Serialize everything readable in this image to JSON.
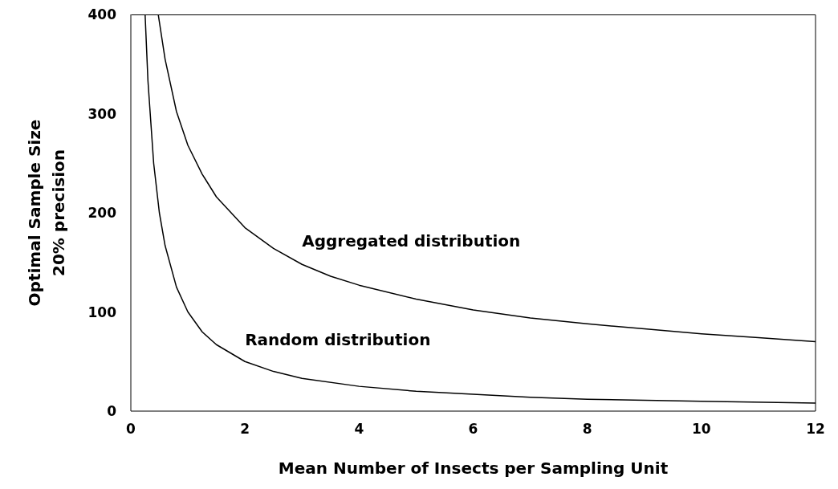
{
  "chart_data": {
    "type": "line",
    "xlabel": "Mean Number of Insects per Sampling Unit",
    "ylabel": "Optimal Sample Size\n20% precision",
    "xlim": [
      0,
      12
    ],
    "xticks": [
      0,
      2,
      4,
      6,
      8,
      10,
      12
    ],
    "ylim": [
      0,
      400
    ],
    "yticks": [
      0,
      100,
      200,
      300,
      400
    ],
    "grid": false,
    "legend": false,
    "marker": "none",
    "line_style": "solid",
    "series": [
      {
        "name": "Aggregated distribution",
        "color": "#000000",
        "x": [
          0.48,
          0.6,
          0.8,
          1,
          1.25,
          1.5,
          2,
          2.5,
          3,
          3.5,
          4,
          5,
          6,
          7,
          8,
          9,
          10,
          11,
          12
        ],
        "values": [
          400,
          355,
          302,
          268,
          239,
          216,
          185,
          164,
          148,
          136,
          127,
          113,
          102,
          94,
          88,
          83,
          78,
          74,
          70
        ]
      },
      {
        "name": "Random distribution",
        "color": "#000000",
        "x": [
          0.25,
          0.3,
          0.4,
          0.5,
          0.6,
          0.8,
          1,
          1.25,
          1.5,
          2,
          2.5,
          3,
          4,
          5,
          6,
          7,
          8,
          10,
          12
        ],
        "values": [
          400,
          333,
          250,
          200,
          167,
          125,
          100,
          80,
          67,
          50,
          40,
          33,
          25,
          20,
          17,
          14,
          12,
          10,
          8
        ]
      }
    ]
  }
}
